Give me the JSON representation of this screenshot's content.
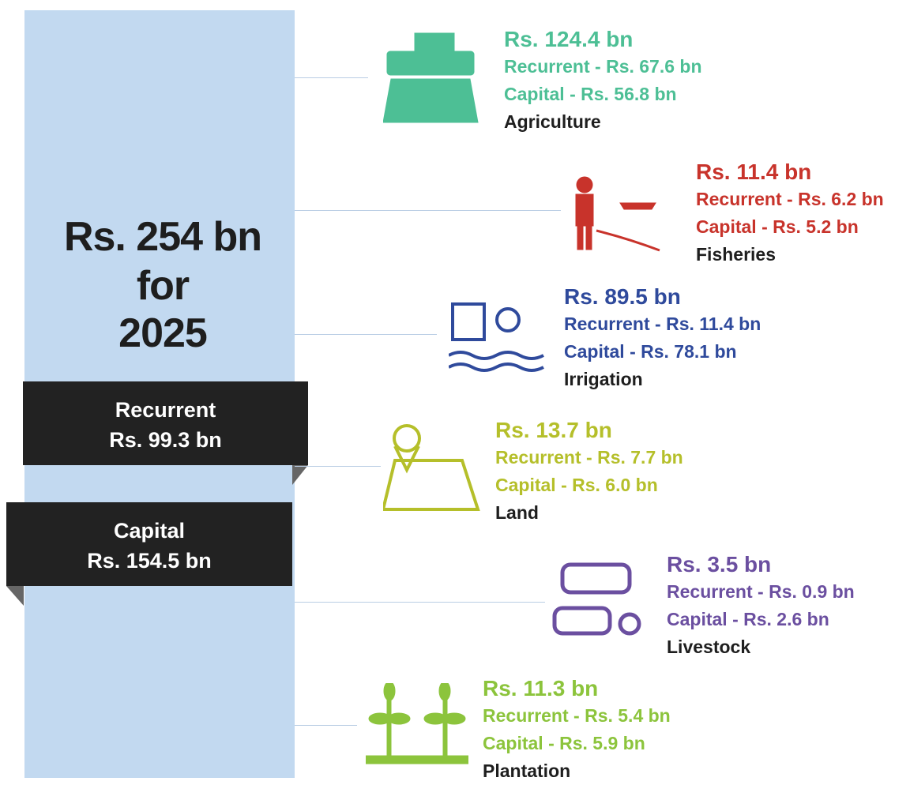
{
  "headline": [
    "Rs. 254 bn",
    "for",
    "2025"
  ],
  "recurrent_box": {
    "label": "Recurrent",
    "amount": "Rs. 99.3  bn"
  },
  "capital_box": {
    "label": "Capital",
    "amount": "Rs. 154.5  bn"
  },
  "sectors": [
    {
      "total": "Rs. 124.4 bn",
      "recurrent": "Recurrent - Rs. 67.6 bn",
      "capital": "Capital - Rs. 56.8 bn",
      "name": "Agriculture",
      "color": "#4dbf95"
    },
    {
      "total": "Rs. 11.4 bn",
      "recurrent": "Recurrent - Rs. 6.2 bn",
      "capital": "Capital - Rs. 5.2 bn",
      "name": "Fisheries",
      "color": "#c8332b"
    },
    {
      "total": "Rs. 89.5 bn",
      "recurrent": "Recurrent - Rs. 11.4 bn",
      "capital": "Capital - Rs. 78.1 bn",
      "name": "Irrigation",
      "color": "#2f4a9c"
    },
    {
      "total": "Rs. 13.7 bn",
      "recurrent": "Recurrent - Rs. 7.7 bn",
      "capital": "Capital - Rs. 6.0 bn",
      "name": "Land",
      "color": "#b5bf2a"
    },
    {
      "total": "Rs. 3.5 bn",
      "recurrent": "Recurrent - Rs. 0.9 bn",
      "capital": "Capital - Rs. 2.6 bn",
      "name": "Livestock",
      "color": "#6b4fa0"
    },
    {
      "total": "Rs. 11.3 bn",
      "recurrent": "Recurrent - Rs. 5.4 bn",
      "capital": "Capital - Rs. 5.9 bn",
      "name": "Plantation",
      "color": "#8cc43c"
    }
  ]
}
